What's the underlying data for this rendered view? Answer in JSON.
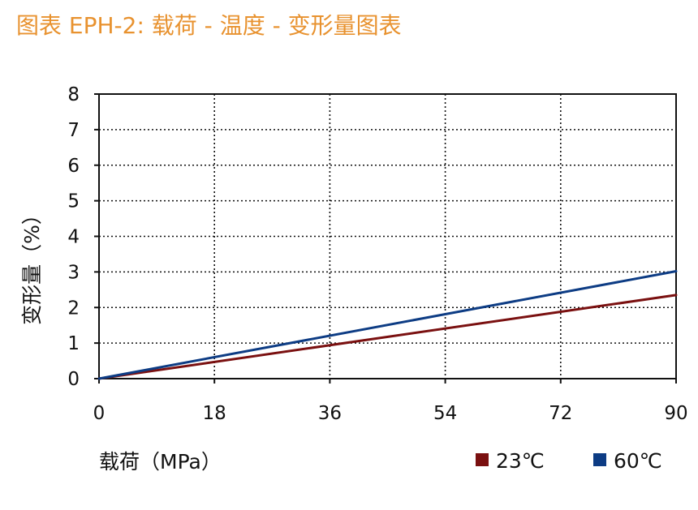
{
  "title": "图表 EPH-2: 载荷 - 温度 - 变形量图表",
  "chart_data": {
    "type": "line",
    "title": "图表 EPH-2: 载荷 - 温度 - 变形量图表",
    "xlabel": "载荷（MPa）",
    "ylabel": "变形量（%）",
    "xlim": [
      0,
      90
    ],
    "ylim": [
      0,
      8
    ],
    "xticks": [
      "0",
      "18",
      "36",
      "54",
      "72",
      "90"
    ],
    "yticks": [
      "0",
      "1",
      "2",
      "3",
      "4",
      "5",
      "6",
      "7",
      "8"
    ],
    "grid": true,
    "legend_position": "bottom-right",
    "series": [
      {
        "name": "23℃",
        "color": "#7A1010",
        "x": [
          0,
          90
        ],
        "y": [
          0,
          2.35
        ]
      },
      {
        "name": "60℃",
        "color": "#0D3C84",
        "x": [
          0,
          90
        ],
        "y": [
          0,
          3.02
        ]
      }
    ]
  }
}
